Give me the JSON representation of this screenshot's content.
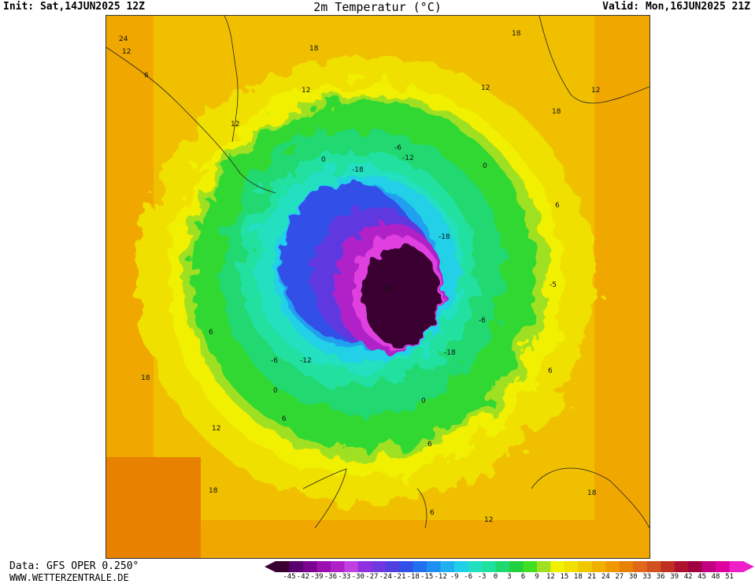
{
  "header": {
    "init": "Init: Sat,14JUN2025 12Z",
    "title": "2m Temperatur (°C)",
    "valid": "Valid: Mon,16JUN2025 21Z"
  },
  "footer": {
    "data_source": "Data: GFS OPER 0.250°",
    "website": "WWW.WETTERZENTRALE.DE"
  },
  "colorbar": {
    "ticks": [
      "-45",
      "-42",
      "-39",
      "-36",
      "-33",
      "-30",
      "-27",
      "-24",
      "-21",
      "-18",
      "-15",
      "-12",
      "-9",
      "-6",
      "-3",
      "0",
      "3",
      "6",
      "9",
      "12",
      "15",
      "18",
      "21",
      "24",
      "27",
      "30",
      "33",
      "36",
      "39",
      "42",
      "45",
      "48",
      "51"
    ],
    "colors": [
      "#3a0030",
      "#5a0070",
      "#7a0090",
      "#9a10b0",
      "#b020c8",
      "#c040e0",
      "#9030e0",
      "#7038e0",
      "#5040e0",
      "#3050e8",
      "#2070f0",
      "#2090f0",
      "#20b0f0",
      "#20d0e8",
      "#20e0c0",
      "#20e0a0",
      "#20d870",
      "#20d040",
      "#40e020",
      "#a0e020",
      "#f0f000",
      "#f0e000",
      "#f0c800",
      "#f0b000",
      "#f09800",
      "#e88000",
      "#e06818",
      "#d05020",
      "#c03020",
      "#b01030",
      "#a00040",
      "#c00080",
      "#e000a0",
      "#f020c8"
    ]
  },
  "map": {
    "contour_labels": [
      {
        "text": "24"
      },
      {
        "text": "12"
      },
      {
        "text": "18"
      },
      {
        "text": "18"
      },
      {
        "text": "12"
      },
      {
        "text": "12"
      },
      {
        "text": "6"
      },
      {
        "text": "12"
      },
      {
        "text": "12"
      },
      {
        "text": "18"
      },
      {
        "text": "-6"
      },
      {
        "text": "-12"
      },
      {
        "text": "0"
      },
      {
        "text": "0"
      },
      {
        "text": "-18"
      },
      {
        "text": "6"
      },
      {
        "text": "-18"
      },
      {
        "text": "-18"
      },
      {
        "text": "-5"
      },
      {
        "text": "-6"
      },
      {
        "text": "6"
      },
      {
        "text": "-6"
      },
      {
        "text": "-12"
      },
      {
        "text": "-18"
      },
      {
        "text": "6"
      },
      {
        "text": "0"
      },
      {
        "text": "0"
      },
      {
        "text": "18"
      },
      {
        "text": "6"
      },
      {
        "text": "12"
      },
      {
        "text": "6"
      },
      {
        "text": "18"
      },
      {
        "text": "6"
      },
      {
        "text": "12"
      },
      {
        "text": "18"
      }
    ]
  }
}
